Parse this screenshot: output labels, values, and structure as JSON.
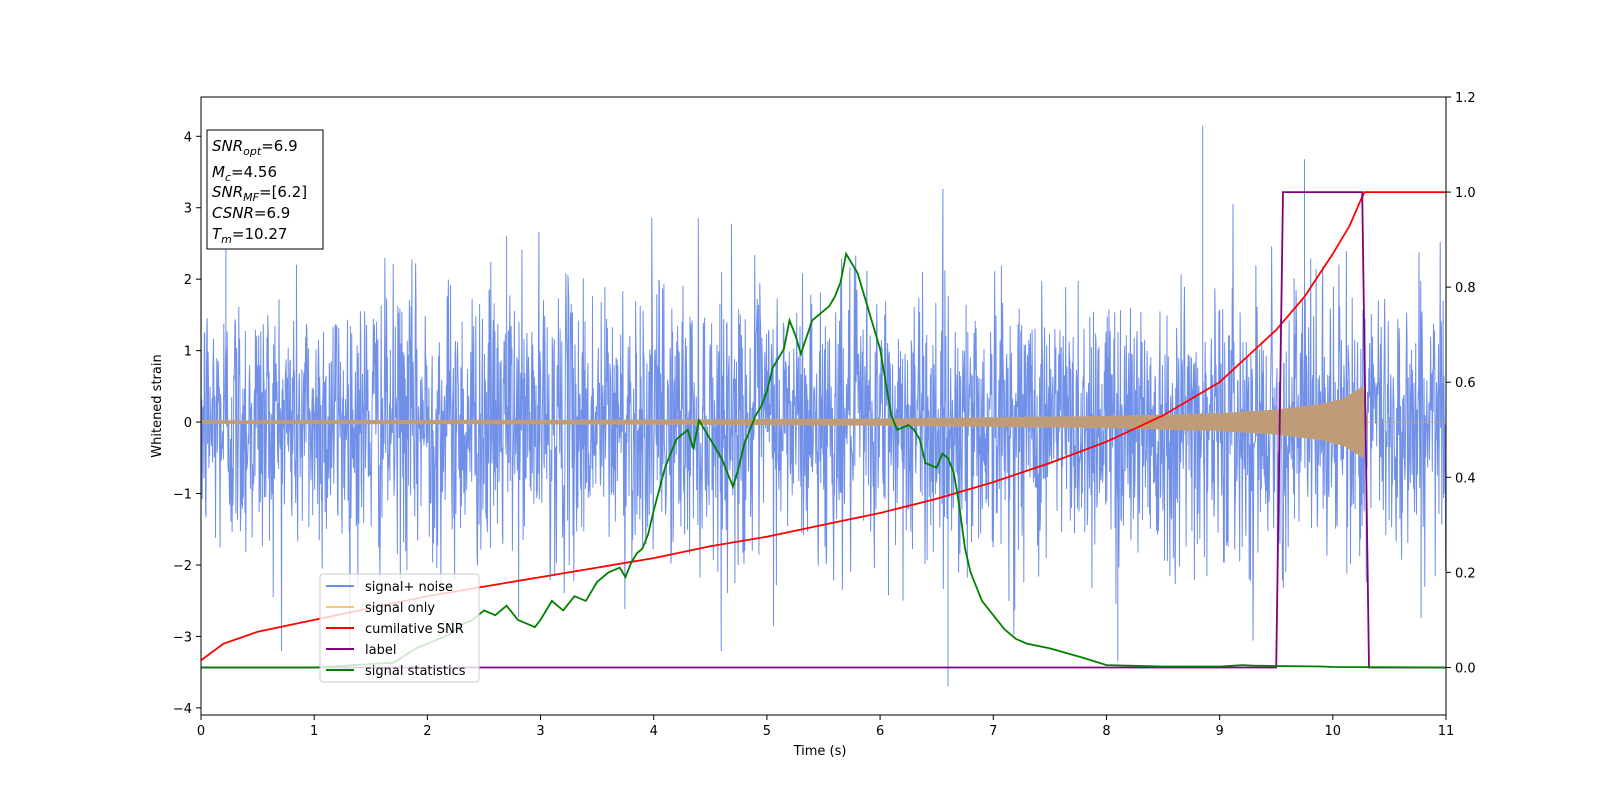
{
  "chart_data": {
    "type": "line",
    "xlabel": "Time (s)",
    "ylabel": "Whitened strain",
    "xlim": [
      0,
      11
    ],
    "ylim": [
      -4.1,
      4.55
    ],
    "y2lim": [
      -0.1,
      1.2
    ],
    "x_ticks": [
      "0",
      "1",
      "2",
      "3",
      "4",
      "5",
      "6",
      "7",
      "8",
      "9",
      "10",
      "11"
    ],
    "y_ticks": [
      "−4",
      "−3",
      "−2",
      "−1",
      "0",
      "1",
      "2",
      "3",
      "4"
    ],
    "y2_ticks": [
      "0.0",
      "0.2",
      "0.4",
      "0.6",
      "0.8",
      "1.0",
      "1.2"
    ],
    "grid": false,
    "legend_position": "lower-left",
    "annotation": {
      "snr_opt": {
        "label": "SNR",
        "sub": "opt",
        "value": "=6.9"
      },
      "mc": {
        "label": "M",
        "sub": "c",
        "value": "=4.56"
      },
      "snr_mf": {
        "label": "SNR",
        "sub": "MF",
        "value": "=[6.2]"
      },
      "csnr": {
        "label": "CSNR",
        "value": "=6.9"
      },
      "tm": {
        "label": "T",
        "sub": "m",
        "value": "=10.27"
      }
    },
    "series": [
      {
        "name": "signal+ noise",
        "axis": "left",
        "color": "#6f8fe8",
        "description_values": {
          "std": 0.95,
          "t_start": 0,
          "t_end": 11,
          "extreme_peaks": [
            [
              0.22,
              2.5
            ],
            [
              2.7,
              2.6
            ],
            [
              8.85,
              4.15
            ],
            [
              9.75,
              3.68
            ],
            [
              6.6,
              -3.7
            ],
            [
              8.1,
              -3.35
            ]
          ]
        }
      },
      {
        "name": "signal only",
        "axis": "left",
        "color": "#f5c77a",
        "envelope": {
          "x": [
            0,
            2,
            4,
            6,
            8,
            9,
            9.5,
            9.9,
            10.1,
            10.27,
            10.3,
            11
          ],
          "amp": [
            0.02,
            0.025,
            0.03,
            0.045,
            0.08,
            0.12,
            0.17,
            0.25,
            0.33,
            0.5,
            0.0,
            0.0
          ]
        }
      },
      {
        "name": "cumilative SNR",
        "axis": "right",
        "color": "#ff0000",
        "x": [
          0,
          0.2,
          0.5,
          1,
          1.5,
          2,
          2.5,
          3,
          3.5,
          4,
          4.5,
          5,
          5.5,
          6,
          6.5,
          7,
          7.5,
          8,
          8.5,
          9,
          9.5,
          9.75,
          10,
          10.15,
          10.25,
          10.28,
          10.5,
          11
        ],
        "y": [
          0.015,
          0.05,
          0.075,
          0.1,
          0.125,
          0.15,
          0.17,
          0.19,
          0.21,
          0.23,
          0.255,
          0.275,
          0.3,
          0.325,
          0.355,
          0.39,
          0.43,
          0.475,
          0.53,
          0.6,
          0.71,
          0.78,
          0.87,
          0.93,
          0.985,
          1.0,
          1.0,
          1.0
        ]
      },
      {
        "name": "label",
        "axis": "right",
        "color": "#800080",
        "x": [
          0,
          9.5,
          9.56,
          10.26,
          10.32,
          11
        ],
        "y": [
          0,
          0,
          1,
          1,
          0,
          0
        ]
      },
      {
        "name": "signal statistics",
        "axis": "right",
        "color": "#008000",
        "x": [
          0,
          1,
          1.7,
          1.9,
          2.0,
          2.1,
          2.2,
          2.3,
          2.4,
          2.5,
          2.6,
          2.7,
          2.8,
          2.9,
          2.95,
          3.0,
          3.05,
          3.1,
          3.15,
          3.2,
          3.3,
          3.4,
          3.5,
          3.6,
          3.7,
          3.75,
          3.8,
          3.85,
          3.9,
          3.95,
          4.0,
          4.1,
          4.15,
          4.2,
          4.3,
          4.35,
          4.4,
          4.5,
          4.6,
          4.7,
          4.75,
          4.8,
          4.9,
          4.95,
          5.0,
          5.05,
          5.15,
          5.2,
          5.25,
          5.3,
          5.4,
          5.5,
          5.55,
          5.6,
          5.65,
          5.7,
          5.8,
          5.9,
          6.0,
          6.05,
          6.1,
          6.15,
          6.25,
          6.3,
          6.35,
          6.4,
          6.5,
          6.55,
          6.6,
          6.65,
          6.7,
          6.75,
          6.8,
          6.9,
          7.0,
          7.1,
          7.2,
          7.3,
          7.5,
          7.8,
          8.0,
          8.5,
          9.0,
          9.2,
          9.3,
          9.5,
          9.9,
          10.0,
          11.0
        ],
        "y": [
          0,
          0,
          0.01,
          0.04,
          0.05,
          0.06,
          0.07,
          0.09,
          0.1,
          0.12,
          0.11,
          0.13,
          0.1,
          0.09,
          0.085,
          0.1,
          0.12,
          0.14,
          0.13,
          0.12,
          0.15,
          0.14,
          0.18,
          0.2,
          0.21,
          0.19,
          0.22,
          0.24,
          0.25,
          0.28,
          0.33,
          0.42,
          0.45,
          0.48,
          0.5,
          0.46,
          0.52,
          0.48,
          0.44,
          0.38,
          0.42,
          0.47,
          0.53,
          0.55,
          0.58,
          0.63,
          0.67,
          0.73,
          0.7,
          0.66,
          0.73,
          0.75,
          0.76,
          0.78,
          0.81,
          0.87,
          0.83,
          0.75,
          0.67,
          0.6,
          0.53,
          0.5,
          0.51,
          0.5,
          0.48,
          0.43,
          0.42,
          0.45,
          0.44,
          0.41,
          0.34,
          0.25,
          0.2,
          0.14,
          0.11,
          0.08,
          0.06,
          0.05,
          0.04,
          0.02,
          0.005,
          0.002,
          0.002,
          0.005,
          0.004,
          0.003,
          0.002,
          0.001,
          0.0
        ]
      }
    ]
  }
}
